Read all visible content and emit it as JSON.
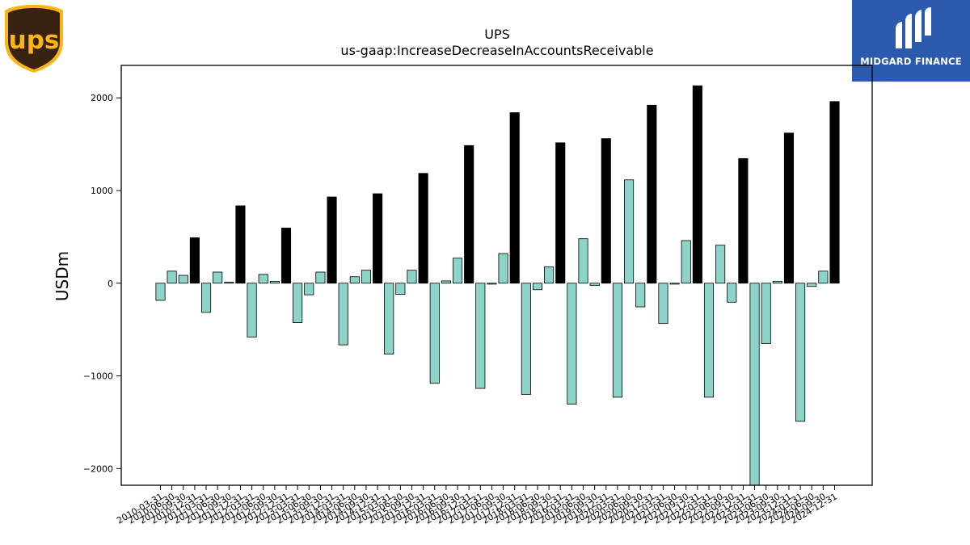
{
  "brand": {
    "left_logo_text": "ups",
    "right_logo_text": "MIDGARD FINANCE",
    "ups_shield_color": "#3a2212",
    "ups_gold_color": "#f9b616",
    "midgard_bg_color": "#2c5aad"
  },
  "chart_data": {
    "type": "bar",
    "title": "UPS",
    "subtitle": "us-gaap:IncreaseDecreaseInAccountsReceivable",
    "xlabel": "",
    "ylabel": "USDm",
    "ylim": [
      -2180,
      2350
    ],
    "yticks": [
      -2000,
      -1000,
      0,
      1000,
      2000
    ],
    "ytick_labels": [
      "−2000",
      "−1000",
      "0",
      "1000",
      "2000"
    ],
    "grid": false,
    "colors": {
      "quarter": "#8dd3c7",
      "annual": "#000000",
      "edge": "#000000"
    },
    "categories": [
      "2010-03-31",
      "2010-06-30",
      "2010-09-30",
      "2010-12-31",
      "2011-03-31",
      "2011-06-30",
      "2011-09-30",
      "2011-12-31",
      "2012-03-31",
      "2012-06-30",
      "2012-09-30",
      "2012-12-31",
      "2013-03-31",
      "2013-06-30",
      "2013-09-30",
      "2013-12-31",
      "2014-03-31",
      "2014-06-30",
      "2014-09-30",
      "2014-12-31",
      "2015-03-31",
      "2015-06-30",
      "2015-09-30",
      "2015-12-31",
      "2016-03-31",
      "2016-06-30",
      "2016-09-30",
      "2016-12-31",
      "2017-03-31",
      "2017-06-30",
      "2017-09-30",
      "2017-12-31",
      "2018-03-31",
      "2018-06-30",
      "2018-09-30",
      "2018-12-31",
      "2019-03-31",
      "2019-06-30",
      "2019-09-30",
      "2019-12-31",
      "2020-03-31",
      "2020-06-30",
      "2020-09-30",
      "2020-12-31",
      "2021-03-31",
      "2021-06-30",
      "2021-09-30",
      "2021-12-31",
      "2022-03-31",
      "2022-06-30",
      "2022-09-30",
      "2022-12-31",
      "2023-03-31",
      "2023-06-30",
      "2023-09-30",
      "2023-12-31",
      "2024-03-31",
      "2024-06-30",
      "2024-09-30",
      "2024-12-31"
    ],
    "values": [
      -185,
      130,
      85,
      490,
      -315,
      120,
      10,
      835,
      -580,
      95,
      20,
      595,
      -425,
      -125,
      120,
      930,
      -665,
      70,
      140,
      965,
      -765,
      -120,
      140,
      1185,
      -1080,
      25,
      270,
      1485,
      -1135,
      -10,
      320,
      1840,
      -1200,
      -70,
      175,
      1515,
      -1305,
      480,
      -25,
      1560,
      -1230,
      1115,
      -255,
      1920,
      -435,
      -10,
      460,
      2130,
      -1230,
      410,
      -205,
      1345,
      -2200,
      -650,
      20,
      1620,
      -1490,
      -35,
      130,
      1960
    ],
    "annual_flags": [
      false,
      false,
      false,
      true,
      false,
      false,
      false,
      true,
      false,
      false,
      false,
      true,
      false,
      false,
      false,
      true,
      false,
      false,
      false,
      true,
      false,
      false,
      false,
      true,
      false,
      false,
      false,
      true,
      false,
      false,
      false,
      true,
      false,
      false,
      false,
      true,
      false,
      false,
      false,
      true,
      false,
      false,
      false,
      true,
      false,
      false,
      false,
      true,
      false,
      false,
      false,
      true,
      false,
      false,
      false,
      true,
      false,
      false,
      false,
      true
    ]
  }
}
